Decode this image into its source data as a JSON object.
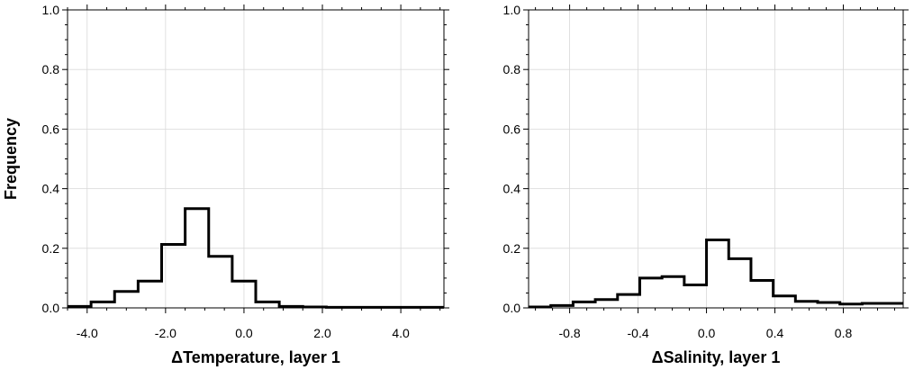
{
  "chart_data": [
    {
      "type": "line",
      "style": "step-histogram",
      "xlabel": "ΔTemperature, layer 1",
      "ylabel": "Frequency",
      "xlim": [
        -4.5,
        5.1
      ],
      "ylim": [
        0,
        1.0
      ],
      "grid": true,
      "x_ticks": [
        -4.0,
        -2.0,
        0.0,
        2.0,
        4.0
      ],
      "x_tick_labels": [
        "-4.0",
        "-2.0",
        "0.0",
        "2.0",
        "4.0"
      ],
      "y_ticks": [
        0.0,
        0.2,
        0.4,
        0.6,
        0.8,
        1.0
      ],
      "y_tick_labels": [
        "0.0",
        "0.2",
        "0.4",
        "0.6",
        "0.8",
        "1.0"
      ],
      "bin_edges": [
        -4.5,
        -3.9,
        -3.3,
        -2.7,
        -2.1,
        -1.5,
        -0.9,
        -0.3,
        0.3,
        0.9,
        1.5,
        2.1,
        2.7,
        3.3,
        3.9,
        4.5,
        5.1
      ],
      "values": [
        0.005,
        0.02,
        0.055,
        0.09,
        0.213,
        0.333,
        0.173,
        0.09,
        0.02,
        0.005,
        0.003,
        0.002,
        0.002,
        0.002,
        0.002,
        0.002
      ]
    },
    {
      "type": "line",
      "style": "step-histogram",
      "xlabel": "ΔSalinity, layer 1",
      "ylabel": "",
      "xlim": [
        -1.04,
        1.15
      ],
      "ylim": [
        0,
        1.0
      ],
      "grid": true,
      "x_ticks": [
        -0.8,
        -0.4,
        0.0,
        0.4,
        0.8
      ],
      "x_tick_labels": [
        "-0.8",
        "-0.4",
        "0.0",
        "0.4",
        "0.8"
      ],
      "y_ticks": [
        0.0,
        0.2,
        0.4,
        0.6,
        0.8,
        1.0
      ],
      "y_tick_labels": [
        "0.0",
        "0.2",
        "0.4",
        "0.6",
        "0.8",
        "1.0"
      ],
      "bin_edges": [
        -1.04,
        -0.91,
        -0.78,
        -0.65,
        -0.52,
        -0.39,
        -0.26,
        -0.13,
        0.0,
        0.13,
        0.26,
        0.39,
        0.52,
        0.65,
        0.78,
        0.91,
        1.04,
        1.15
      ],
      "values": [
        0.003,
        0.008,
        0.02,
        0.028,
        0.045,
        0.1,
        0.105,
        0.077,
        0.228,
        0.165,
        0.092,
        0.04,
        0.022,
        0.018,
        0.013,
        0.015,
        0.015
      ]
    }
  ]
}
